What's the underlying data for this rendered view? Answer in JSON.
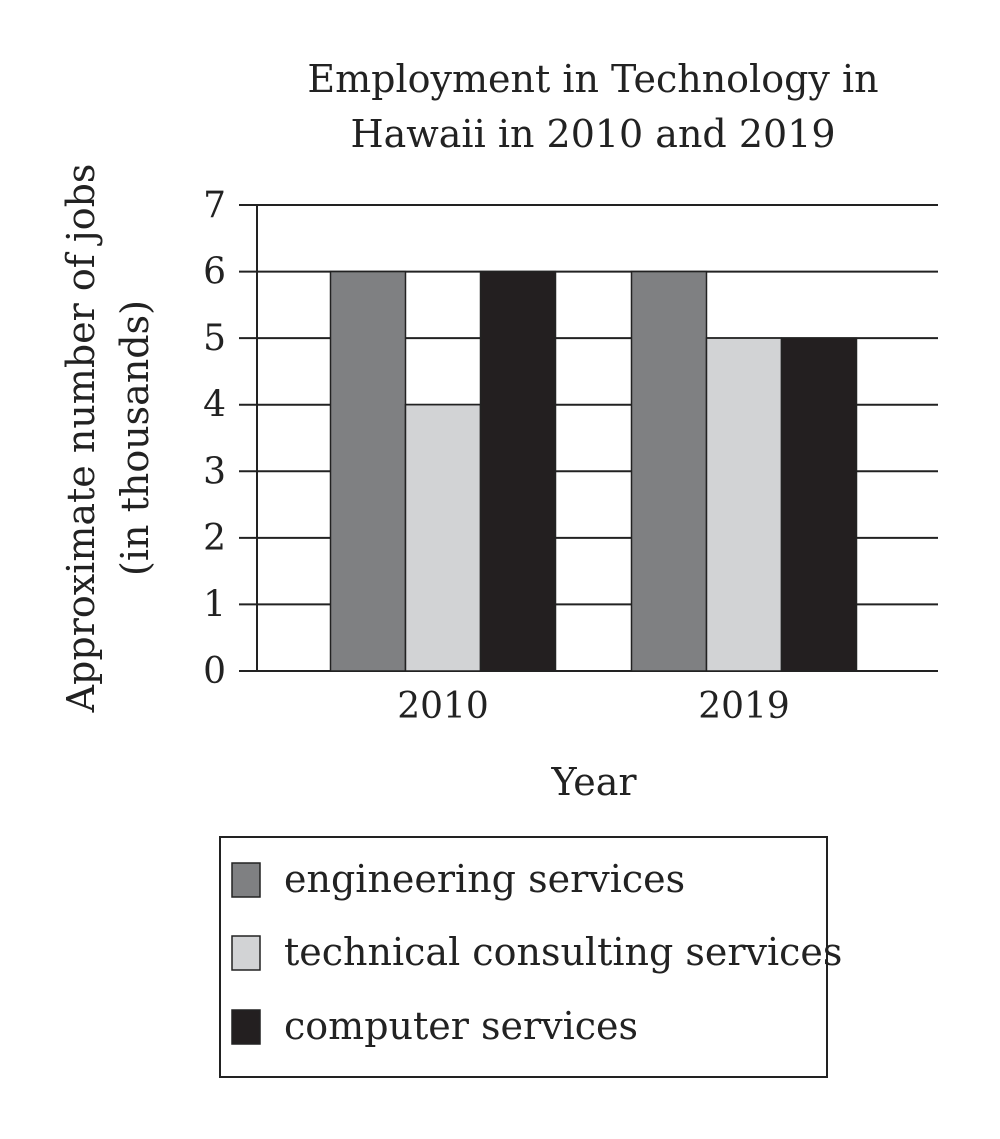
{
  "chart_data": {
    "type": "bar",
    "title_lines": [
      "Employment in Technology in",
      "Hawaii in 2010 and 2019"
    ],
    "categories": [
      "2010",
      "2019"
    ],
    "series": [
      {
        "name": "engineering services",
        "values": [
          6,
          6
        ],
        "color": "#7f8082"
      },
      {
        "name": "technical consulting services",
        "values": [
          4,
          5
        ],
        "color": "#d2d3d5"
      },
      {
        "name": "computer services",
        "values": [
          6,
          5
        ],
        "color": "#231f20"
      }
    ],
    "xlabel": "Year",
    "ylabel_lines": [
      "Approximate number of jobs",
      "(in thousands)"
    ],
    "ylim": [
      0,
      7
    ],
    "yticks": [
      0,
      1,
      2,
      3,
      4,
      5,
      6,
      7
    ],
    "grid": true,
    "legend_position": "bottom"
  }
}
